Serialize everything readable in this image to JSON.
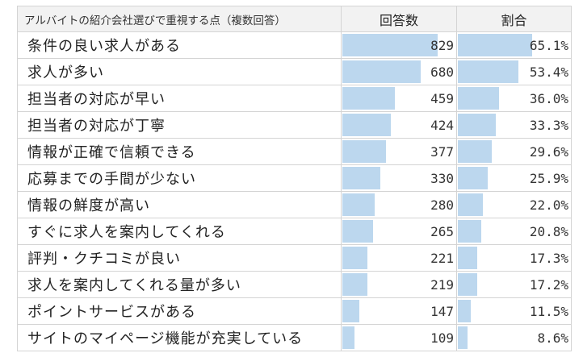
{
  "chart_data": {
    "type": "table",
    "columns": [
      "アルバイトの紹介会社選びで重視する点（複数回答）",
      "回答数",
      "割合"
    ],
    "rows": [
      {
        "label": "条件の良い求人がある",
        "count": 829,
        "ratio": "65.1%",
        "ratio_value": 65.1
      },
      {
        "label": "求人が多い",
        "count": 680,
        "ratio": "53.4%",
        "ratio_value": 53.4
      },
      {
        "label": "担当者の対応が早い",
        "count": 459,
        "ratio": "36.0%",
        "ratio_value": 36.0
      },
      {
        "label": "担当者の対応が丁寧",
        "count": 424,
        "ratio": "33.3%",
        "ratio_value": 33.3
      },
      {
        "label": "情報が正確で信頼できる",
        "count": 377,
        "ratio": "29.6%",
        "ratio_value": 29.6
      },
      {
        "label": "応募までの手間が少ない",
        "count": 330,
        "ratio": "25.9%",
        "ratio_value": 25.9
      },
      {
        "label": "情報の鮮度が高い",
        "count": 280,
        "ratio": "22.0%",
        "ratio_value": 22.0
      },
      {
        "label": "すぐに求人を案内してくれる",
        "count": 265,
        "ratio": "20.8%",
        "ratio_value": 20.8
      },
      {
        "label": "評判・クチコミが良い",
        "count": 221,
        "ratio": "17.3%",
        "ratio_value": 17.3
      },
      {
        "label": "求人を案内してくれる量が多い",
        "count": 219,
        "ratio": "17.2%",
        "ratio_value": 17.2
      },
      {
        "label": "ポイントサービスがある",
        "count": 147,
        "ratio": "11.5%",
        "ratio_value": 11.5
      },
      {
        "label": "サイトのマイページ機能が充実している",
        "count": 109,
        "ratio": "8.6%",
        "ratio_value": 8.6
      }
    ],
    "bar_color": "#bcd7ee"
  }
}
